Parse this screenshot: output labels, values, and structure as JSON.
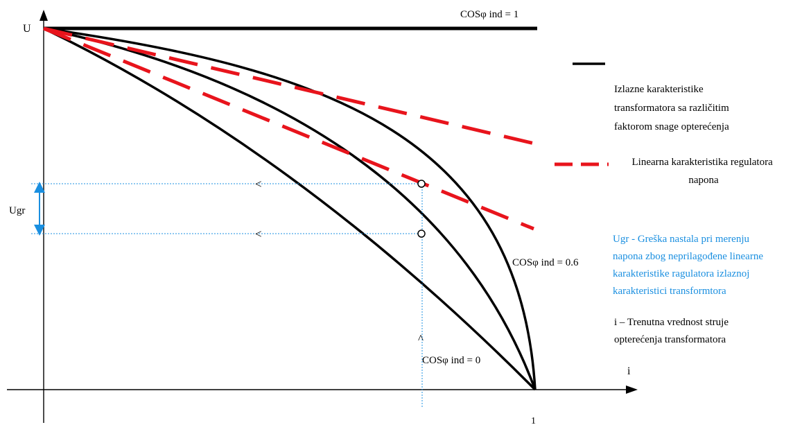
{
  "axes": {
    "y_label": "U",
    "x_label": "i",
    "x_end_tick": "1"
  },
  "curves": {
    "cos1_label": "COSφ ind = 1",
    "cos06_label": "COSφ ind = 0.6",
    "cos0_label": "COSφ ind = 0"
  },
  "error": {
    "label": "Ugr"
  },
  "legend": {
    "black_line_text": [
      "Izlazne karakteristike",
      "transformatora sa različitim",
      "faktorom snage opterećenja"
    ],
    "red_dashed_text": [
      "Linearna karakteristika regulatora",
      "napona"
    ],
    "ugr_text": [
      "Ugr - Greška nastala pri merenju",
      "napona zbog neprilagođene linearne",
      "karakteristike ragulatora izlaznoj",
      "karakteristici transformtora"
    ],
    "i_text": [
      "i – Trenutna vrednost struje",
      "opterećenja transformatora"
    ]
  },
  "colors": {
    "curve": "#000000",
    "regulator": "#e8141c",
    "guide": "#1a8fe0",
    "ugr_text": "#1a8fe0"
  },
  "arrow_glyphs": {
    "left": "<",
    "up": "^"
  }
}
